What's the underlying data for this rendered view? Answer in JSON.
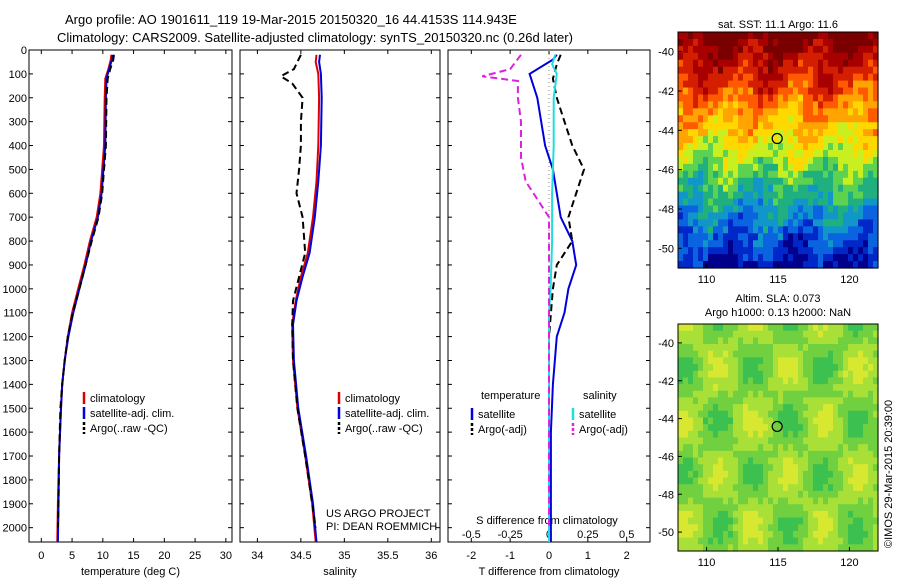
{
  "header": {
    "line1": "Argo profile: AO 1901611_119 19-Mar-2015 20150320_16 44.4153S 114.943E",
    "line2": "Climatology: CARS2009. Satellite-adjusted climatology: synTS_20150320.nc (0.26d later)"
  },
  "credit": "©IMOS 29-Mar-2015 20:39:00",
  "colors": {
    "climatology": "#dd0000",
    "satellite": "#0000dd",
    "argo": "#000000",
    "sal_satellite": "#22dddd",
    "sal_argo": "#dd22dd"
  },
  "chart_data": [
    {
      "type": "line",
      "id": "temperature",
      "xlabel": "temperature (deg C)",
      "xlim": [
        -2,
        31
      ],
      "xticks": [
        0,
        5,
        10,
        15,
        20,
        25,
        30
      ],
      "ylim": [
        2060,
        0
      ],
      "yticks": [
        0,
        100,
        200,
        300,
        400,
        500,
        600,
        700,
        800,
        900,
        1000,
        1100,
        1200,
        1300,
        1400,
        1500,
        1600,
        1700,
        1800,
        1900,
        2000
      ],
      "legend": [
        "climatology",
        "satellite-adj. clim.",
        "Argo(..raw -QC)"
      ],
      "series": [
        {
          "name": "climatology",
          "style": "solid",
          "color": "climatology",
          "points": [
            [
              11.4,
              20
            ],
            [
              11.3,
              40
            ],
            [
              10.9,
              80
            ],
            [
              10.4,
              120
            ],
            [
              10.3,
              200
            ],
            [
              10.2,
              400
            ],
            [
              9.9,
              500
            ],
            [
              9.6,
              600
            ],
            [
              9.0,
              700
            ],
            [
              7.9,
              800
            ],
            [
              7.0,
              900
            ],
            [
              6.0,
              1000
            ],
            [
              5.0,
              1100
            ],
            [
              4.3,
              1200
            ],
            [
              3.8,
              1300
            ],
            [
              3.4,
              1400
            ],
            [
              3.2,
              1500
            ],
            [
              2.9,
              1700
            ],
            [
              2.7,
              1900
            ],
            [
              2.6,
              2060
            ]
          ]
        },
        {
          "name": "satellite-adj. clim.",
          "style": "solid",
          "color": "satellite",
          "points": [
            [
              11.6,
              20
            ],
            [
              11.5,
              40
            ],
            [
              11.0,
              80
            ],
            [
              10.6,
              120
            ],
            [
              10.5,
              200
            ],
            [
              10.4,
              400
            ],
            [
              10.1,
              500
            ],
            [
              9.8,
              600
            ],
            [
              9.2,
              700
            ],
            [
              8.1,
              800
            ],
            [
              7.2,
              900
            ],
            [
              6.2,
              1000
            ],
            [
              5.2,
              1100
            ],
            [
              4.4,
              1200
            ],
            [
              3.8,
              1300
            ],
            [
              3.4,
              1400
            ],
            [
              3.2,
              1500
            ],
            [
              2.9,
              1700
            ],
            [
              2.8,
              1900
            ],
            [
              2.7,
              2060
            ]
          ]
        },
        {
          "name": "Argo(..raw -QC)",
          "style": "dashed",
          "color": "argo",
          "points": [
            [
              11.8,
              20
            ],
            [
              11.7,
              40
            ],
            [
              11.2,
              80
            ],
            [
              10.8,
              120
            ],
            [
              10.6,
              200
            ],
            [
              10.5,
              400
            ],
            [
              10.2,
              500
            ],
            [
              9.9,
              600
            ],
            [
              9.3,
              700
            ],
            [
              8.2,
              800
            ],
            [
              7.2,
              900
            ],
            [
              6.2,
              1000
            ],
            [
              5.1,
              1100
            ],
            [
              4.3,
              1200
            ],
            [
              3.8,
              1300
            ],
            [
              3.4,
              1400
            ],
            [
              3.1,
              1500
            ],
            [
              2.9,
              1700
            ],
            [
              2.8,
              1900
            ],
            [
              2.7,
              2000
            ]
          ]
        }
      ]
    },
    {
      "type": "line",
      "id": "salinity",
      "xlabel": "salinity",
      "xlim": [
        33.8,
        36.1
      ],
      "xticks": [
        34,
        34.5,
        35,
        35.5,
        36
      ],
      "xtick_labels": [
        "34",
        "34.5",
        "35",
        "35.5",
        "36"
      ],
      "ylim": [
        2060,
        0
      ],
      "legend": [
        "climatology",
        "satellite-adj. clim.",
        "Argo(..raw -QC)"
      ],
      "annotation": [
        "US ARGO PROJECT",
        "PI: DEAN ROEMMICH"
      ],
      "series": [
        {
          "name": "climatology",
          "style": "solid",
          "color": "climatology",
          "points": [
            [
              34.68,
              20
            ],
            [
              34.67,
              50
            ],
            [
              34.7,
              100
            ],
            [
              34.71,
              200
            ],
            [
              34.7,
              400
            ],
            [
              34.68,
              550
            ],
            [
              34.64,
              700
            ],
            [
              34.58,
              850
            ],
            [
              34.5,
              950
            ],
            [
              34.44,
              1050
            ],
            [
              34.4,
              1150
            ],
            [
              34.41,
              1300
            ],
            [
              34.46,
              1500
            ],
            [
              34.55,
              1700
            ],
            [
              34.63,
              1900
            ],
            [
              34.67,
              2060
            ]
          ]
        },
        {
          "name": "satellite-adj. clim.",
          "style": "solid",
          "color": "satellite",
          "points": [
            [
              34.72,
              20
            ],
            [
              34.71,
              50
            ],
            [
              34.73,
              100
            ],
            [
              34.74,
              200
            ],
            [
              34.73,
              400
            ],
            [
              34.7,
              550
            ],
            [
              34.66,
              700
            ],
            [
              34.6,
              850
            ],
            [
              34.52,
              950
            ],
            [
              34.45,
              1050
            ],
            [
              34.41,
              1150
            ],
            [
              34.42,
              1300
            ],
            [
              34.47,
              1500
            ],
            [
              34.56,
              1700
            ],
            [
              34.64,
              1900
            ],
            [
              34.68,
              2060
            ]
          ]
        },
        {
          "name": "Argo(..raw -QC)",
          "style": "dashed",
          "color": "argo",
          "points": [
            [
              34.5,
              20
            ],
            [
              34.42,
              80
            ],
            [
              34.27,
              110
            ],
            [
              34.4,
              140
            ],
            [
              34.52,
              200
            ],
            [
              34.5,
              300
            ],
            [
              34.5,
              400
            ],
            [
              34.48,
              500
            ],
            [
              34.45,
              600
            ],
            [
              34.52,
              700
            ],
            [
              34.55,
              850
            ],
            [
              34.48,
              950
            ],
            [
              34.41,
              1050
            ],
            [
              34.4,
              1150
            ],
            [
              34.41,
              1300
            ],
            [
              34.46,
              1500
            ],
            [
              34.55,
              1700
            ],
            [
              34.63,
              1900
            ],
            [
              34.67,
              2000
            ]
          ]
        }
      ]
    },
    {
      "type": "line",
      "id": "differences",
      "xlabel": "T difference from climatology",
      "xlim": [
        -2.6,
        2.6
      ],
      "xticks": [
        -2,
        -1,
        0,
        1,
        2
      ],
      "top_axis_label": "S difference from climatology",
      "top_ticks": [
        -0.5,
        -0.25,
        0,
        0.25,
        0.5
      ],
      "top_tick_labels": [
        "-0.5",
        "-0.25",
        "0",
        "0.25",
        "0.5"
      ],
      "top_xlim": [
        -0.65,
        0.65
      ],
      "ylim": [
        2060,
        0
      ],
      "legend_headings": [
        "temperature",
        "salinity"
      ],
      "legend": [
        "satellite",
        "Argo(-adj)",
        "satellite",
        "Argo(-adj)"
      ],
      "series": [
        {
          "name": "temperature satellite",
          "axis": "T",
          "style": "solid",
          "color": "satellite",
          "points": [
            [
              0.2,
              20
            ],
            [
              0.1,
              40
            ],
            [
              -0.5,
              100
            ],
            [
              -0.3,
              200
            ],
            [
              -0.2,
              300
            ],
            [
              -0.1,
              400
            ],
            [
              0.1,
              500
            ],
            [
              0.2,
              600
            ],
            [
              0.3,
              700
            ],
            [
              0.6,
              800
            ],
            [
              0.7,
              900
            ],
            [
              0.5,
              1000
            ],
            [
              0.4,
              1100
            ],
            [
              0.2,
              1200
            ],
            [
              0.1,
              1400
            ],
            [
              0.05,
              1600
            ],
            [
              0.05,
              1800
            ],
            [
              0.05,
              2060
            ]
          ]
        },
        {
          "name": "temperature Argo(-adj)",
          "axis": "T",
          "style": "dashed",
          "color": "argo",
          "points": [
            [
              0.3,
              20
            ],
            [
              0.2,
              60
            ],
            [
              0.1,
              120
            ],
            [
              0.2,
              200
            ],
            [
              0.4,
              300
            ],
            [
              0.6,
              400
            ],
            [
              0.9,
              500
            ],
            [
              0.5,
              700
            ],
            [
              0.6,
              800
            ],
            [
              0.2,
              900
            ],
            [
              0.1,
              1000
            ],
            [
              0.0,
              1200
            ],
            [
              0.0,
              1400
            ],
            [
              0.0,
              1600
            ],
            [
              0.0,
              1800
            ],
            [
              0.0,
              2000
            ]
          ]
        },
        {
          "name": "salinity satellite",
          "axis": "S",
          "style": "solid",
          "color": "sal_satellite",
          "points": [
            [
              0.04,
              20
            ],
            [
              0.02,
              60
            ],
            [
              0.05,
              100
            ],
            [
              0.03,
              200
            ],
            [
              0.03,
              400
            ],
            [
              0.02,
              600
            ],
            [
              0.02,
              800
            ],
            [
              0.01,
              1000
            ],
            [
              0.0,
              1100
            ],
            [
              0.0,
              1200
            ],
            [
              0.0,
              1400
            ],
            [
              0.0,
              1600
            ],
            [
              0.0,
              1800
            ],
            [
              0.0,
              2060
            ]
          ]
        },
        {
          "name": "salinity Argo(-adj)",
          "axis": "S",
          "style": "dashed",
          "color": "sal_argo",
          "points": [
            [
              -0.18,
              20
            ],
            [
              -0.25,
              80
            ],
            [
              -0.43,
              110
            ],
            [
              -0.2,
              130
            ],
            [
              -0.2,
              200
            ],
            [
              -0.18,
              300
            ],
            [
              -0.18,
              450
            ],
            [
              -0.15,
              550
            ],
            [
              -0.05,
              650
            ],
            [
              0.0,
              700
            ],
            [
              0.0,
              900
            ],
            [
              0.0,
              1100
            ],
            [
              0.0,
              1300
            ],
            [
              0.0,
              1500
            ],
            [
              0.0,
              1700
            ],
            [
              0.0,
              1900
            ],
            [
              0.0,
              2000
            ]
          ]
        }
      ]
    },
    {
      "type": "heatmap",
      "id": "sst_map",
      "title": "sat. SST: 11.1  Argo: 11.6",
      "xlim": [
        108,
        122
      ],
      "ylim": [
        -51,
        -39
      ],
      "xticks": [
        110,
        115,
        120
      ],
      "yticks": [
        -40,
        -42,
        -44,
        -46,
        -48,
        -50
      ],
      "float_position": [
        114.943,
        -44.4153
      ]
    },
    {
      "type": "heatmap",
      "id": "sla_map",
      "title_lines": [
        "Altim. SLA: 0.073",
        "Argo h1000: 0.13 h2000: NaN"
      ],
      "xlim": [
        108,
        122
      ],
      "ylim": [
        -51,
        -39
      ],
      "xticks": [
        110,
        115,
        120
      ],
      "yticks": [
        -40,
        -42,
        -44,
        -46,
        -48,
        -50
      ],
      "float_position": [
        114.943,
        -44.4153
      ]
    }
  ]
}
